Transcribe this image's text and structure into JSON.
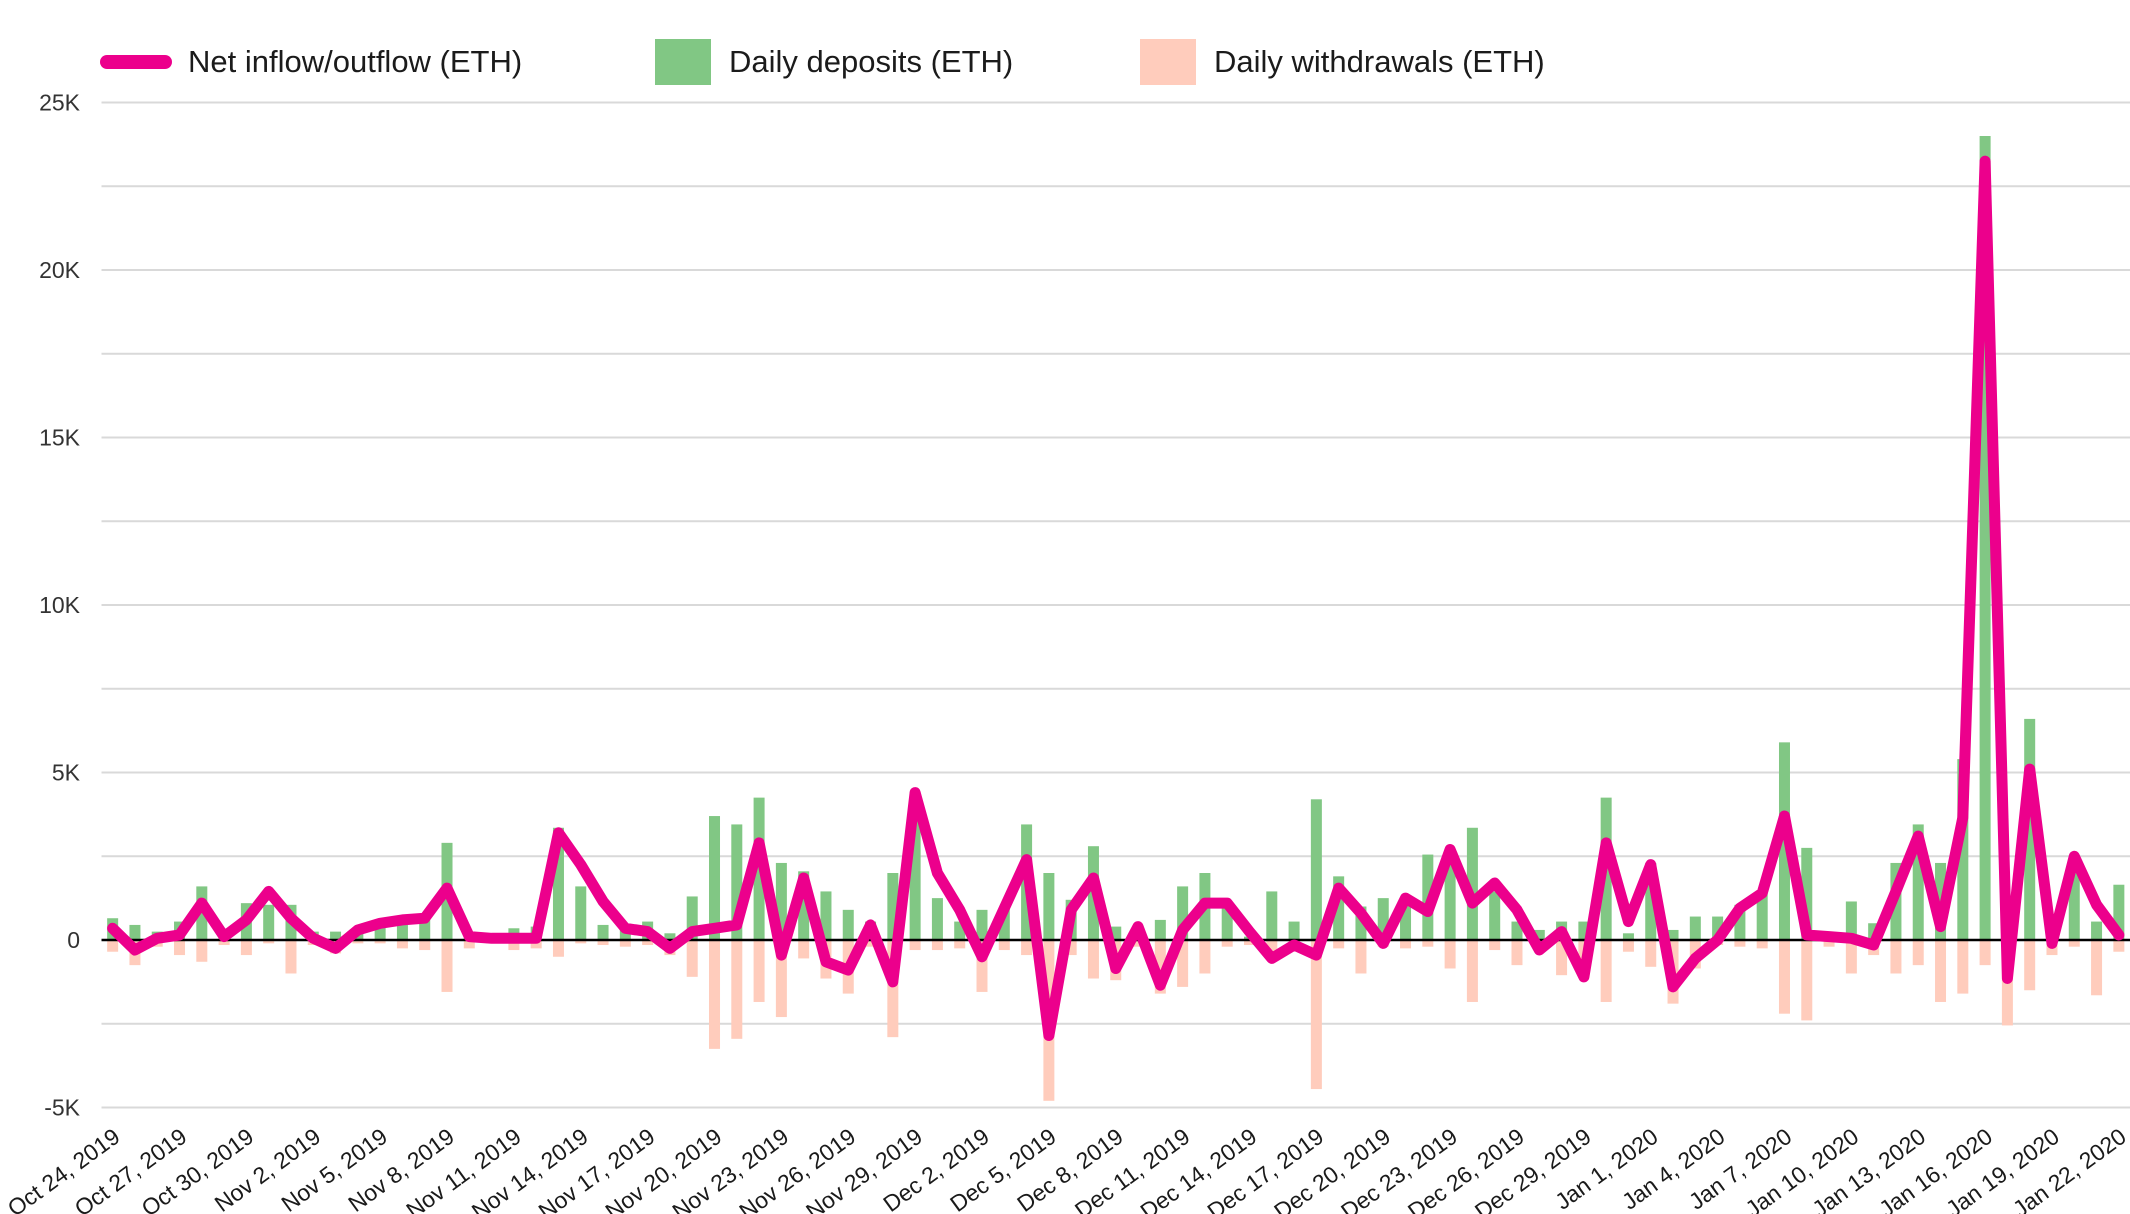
{
  "legend": {
    "items": [
      {
        "label": "Net inflow/outflow (ETH)",
        "color": "#EC008C",
        "swatch": "line"
      },
      {
        "label": "Daily deposits (ETH)",
        "color": "#81C784",
        "swatch": "square"
      },
      {
        "label": "Daily withdrawals (ETH)",
        "color": "#FFCCBC",
        "swatch": "square"
      }
    ]
  },
  "axes": {
    "y_tick_labels": [
      "25K",
      "20K",
      "15K",
      "10K",
      "5K",
      "0",
      "-5K"
    ],
    "y_tick_values": [
      25000,
      20000,
      15000,
      10000,
      5000,
      0,
      -5000
    ],
    "y_minor_step": 2500,
    "grid_color": "#d9d9d9",
    "zero_line_color": "#000000",
    "label_color": "#333333",
    "x_label_color": "#1a1a1a"
  },
  "chart_data": {
    "type": "line+bar",
    "title": "",
    "xlabel": "",
    "ylabel": "",
    "ylim": [
      -5000,
      25000
    ],
    "grid": true,
    "legend_position": "top-left",
    "x_tick_labels": [
      "Oct 24, 2019",
      "Oct 27, 2019",
      "Oct 30, 2019",
      "Nov 2, 2019",
      "Nov 5, 2019",
      "Nov 8, 2019",
      "Nov 11, 2019",
      "Nov 14, 2019",
      "Nov 17, 2019",
      "Nov 20, 2019",
      "Nov 23, 2019",
      "Nov 26, 2019",
      "Nov 29, 2019",
      "Dec 2, 2019",
      "Dec 5, 2019",
      "Dec 8, 2019",
      "Dec 11, 2019",
      "Dec 14, 2019",
      "Dec 17, 2019",
      "Dec 20, 2019",
      "Dec 23, 2019",
      "Dec 26, 2019",
      "Dec 29, 2019",
      "Jan 1, 2020",
      "Jan 4, 2020",
      "Jan 7, 2020",
      "Jan 10, 2020",
      "Jan 13, 2020",
      "Jan 16, 2020",
      "Jan 19, 2020",
      "Jan 22, 2020"
    ],
    "x_tick_every_days": 3,
    "dates": [
      "Oct 24",
      "Oct 25",
      "Oct 26",
      "Oct 27",
      "Oct 28",
      "Oct 29",
      "Oct 30",
      "Oct 31",
      "Nov 1",
      "Nov 2",
      "Nov 3",
      "Nov 4",
      "Nov 5",
      "Nov 6",
      "Nov 7",
      "Nov 8",
      "Nov 9",
      "Nov 10",
      "Nov 11",
      "Nov 12",
      "Nov 13",
      "Nov 14",
      "Nov 15",
      "Nov 16",
      "Nov 17",
      "Nov 18",
      "Nov 19",
      "Nov 20",
      "Nov 21",
      "Nov 22",
      "Nov 23",
      "Nov 24",
      "Nov 25",
      "Nov 26",
      "Nov 27",
      "Nov 28",
      "Nov 29",
      "Nov 30",
      "Dec 1",
      "Dec 2",
      "Dec 3",
      "Dec 4",
      "Dec 5",
      "Dec 6",
      "Dec 7",
      "Dec 8",
      "Dec 9",
      "Dec 10",
      "Dec 11",
      "Dec 12",
      "Dec 13",
      "Dec 14",
      "Dec 15",
      "Dec 16",
      "Dec 17",
      "Dec 18",
      "Dec 19",
      "Dec 20",
      "Dec 21",
      "Dec 22",
      "Dec 23",
      "Dec 24",
      "Dec 25",
      "Dec 26",
      "Dec 27",
      "Dec 28",
      "Dec 29",
      "Dec 30",
      "Dec 31",
      "Jan 1",
      "Jan 2",
      "Jan 3",
      "Jan 4",
      "Jan 5",
      "Jan 6",
      "Jan 7",
      "Jan 8",
      "Jan 9",
      "Jan 10",
      "Jan 11",
      "Jan 12",
      "Jan 13",
      "Jan 14",
      "Jan 15",
      "Jan 16",
      "Jan 17",
      "Jan 18",
      "Jan 19",
      "Jan 20",
      "Jan 21",
      "Jan 22"
    ],
    "series": [
      {
        "name": "Net inflow/outflow (ETH)",
        "type": "line",
        "color": "#EC008C",
        "values": [
          350,
          -300,
          50,
          150,
          1100,
          100,
          600,
          1450,
          650,
          50,
          -250,
          300,
          500,
          600,
          650,
          1550,
          100,
          50,
          50,
          50,
          3200,
          2250,
          1150,
          350,
          250,
          -250,
          250,
          350,
          450,
          2900,
          -450,
          1850,
          -650,
          -900,
          450,
          -1250,
          4400,
          2000,
          900,
          -500,
          950,
          2400,
          -2850,
          900,
          1850,
          -850,
          400,
          -1350,
          300,
          1100,
          1100,
          250,
          -550,
          -150,
          -450,
          1550,
          800,
          -100,
          1250,
          850,
          2700,
          1100,
          1700,
          900,
          -300,
          250,
          -1100,
          2900,
          550,
          2250,
          -1400,
          -550,
          0,
          950,
          1400,
          3700,
          150,
          100,
          50,
          -150,
          1450,
          3100,
          400,
          3650,
          23250,
          -1150,
          5100,
          -100,
          2500,
          1050,
          150
        ]
      },
      {
        "name": "Daily deposits (ETH)",
        "type": "bar",
        "color": "#81C784",
        "values": [
          650,
          450,
          250,
          550,
          1600,
          250,
          1100,
          1050,
          1050,
          250,
          250,
          350,
          450,
          450,
          600,
          2900,
          250,
          150,
          350,
          400,
          3350,
          1600,
          450,
          400,
          550,
          200,
          1300,
          3700,
          3450,
          4250,
          2300,
          2050,
          1450,
          900,
          550,
          2000,
          4400,
          1250,
          550,
          900,
          950,
          3450,
          2000,
          1200,
          2800,
          400,
          300,
          600,
          1600,
          2000,
          1150,
          100,
          1450,
          550,
          4200,
          1900,
          1000,
          1250,
          1200,
          2550,
          2250,
          3350,
          1450,
          550,
          300,
          550,
          550,
          4250,
          200,
          2300,
          300,
          700,
          700,
          1050,
          1450,
          5900,
          2750,
          150,
          1150,
          500,
          2300,
          3450,
          2300,
          5400,
          24000,
          150,
          6600,
          300,
          2250,
          550,
          1650
        ]
      },
      {
        "name": "Daily withdrawals (ETH)",
        "type": "bar",
        "color": "#FFCCBC",
        "values": [
          -350,
          -750,
          -200,
          -450,
          -650,
          -150,
          -450,
          -100,
          -1000,
          -150,
          -400,
          -100,
          -100,
          -250,
          -300,
          -1550,
          -250,
          -100,
          -300,
          -250,
          -500,
          -100,
          -150,
          -200,
          -150,
          -450,
          -1100,
          -3250,
          -2950,
          -1850,
          -2300,
          -550,
          -1150,
          -1600,
          -200,
          -2900,
          -300,
          -300,
          -250,
          -1550,
          -300,
          -450,
          -4800,
          -450,
          -1150,
          -1200,
          -200,
          -1600,
          -1400,
          -1000,
          -200,
          -150,
          -550,
          -300,
          -4450,
          -250,
          -1000,
          -200,
          -250,
          -200,
          -850,
          -1850,
          -300,
          -750,
          -150,
          -1050,
          -900,
          -1850,
          -350,
          -800,
          -1900,
          -850,
          -150,
          -200,
          -250,
          -2200,
          -2400,
          -200,
          -1000,
          -450,
          -1000,
          -750,
          -1850,
          -1600,
          -750,
          -2550,
          -1500,
          -450,
          -200,
          -1650,
          -350
        ]
      }
    ]
  }
}
